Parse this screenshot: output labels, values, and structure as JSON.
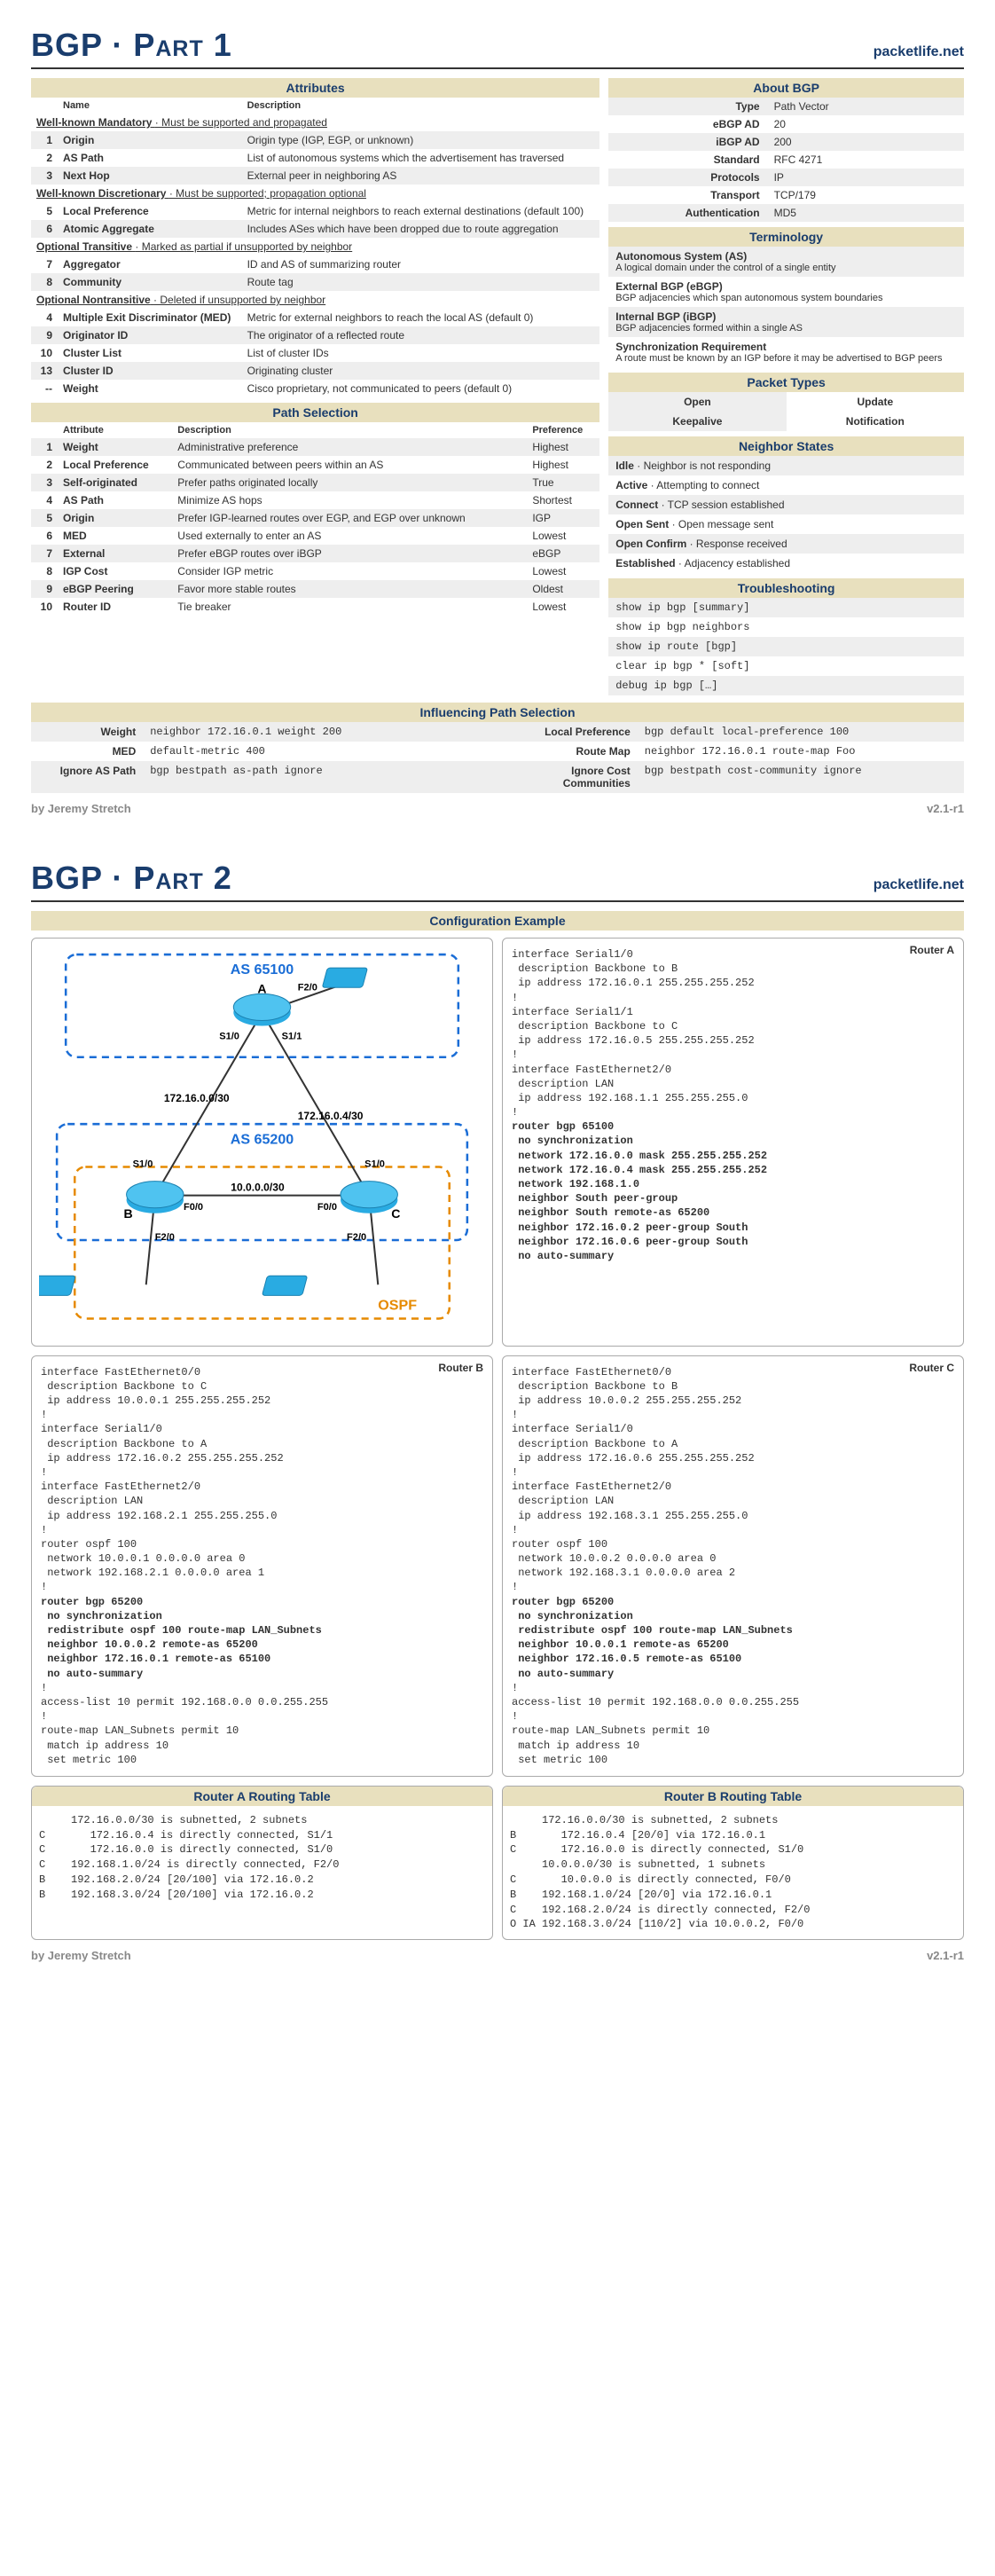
{
  "site": "packetlife.net",
  "footer_author": "by Jeremy Stretch",
  "footer_version": "v2.1-r1",
  "part1": {
    "title": "BGP · Part 1",
    "attributes": {
      "title": "Attributes",
      "cols": [
        "Name",
        "Description"
      ],
      "groups": [
        {
          "label": "Well-known Mandatory",
          "desc": "· Must be supported and propagated",
          "rows": [
            {
              "n": "1",
              "name": "Origin",
              "desc": "Origin type (IGP, EGP, or unknown)"
            },
            {
              "n": "2",
              "name": "AS Path",
              "desc": "List of autonomous systems which the advertisement has traversed"
            },
            {
              "n": "3",
              "name": "Next Hop",
              "desc": "External peer in neighboring AS"
            }
          ]
        },
        {
          "label": "Well-known Discretionary",
          "desc": "· Must be supported; propagation optional",
          "rows": [
            {
              "n": "5",
              "name": "Local Preference",
              "desc": "Metric for internal neighbors to reach external destinations (default 100)"
            },
            {
              "n": "6",
              "name": "Atomic Aggregate",
              "desc": "Includes ASes which have been dropped due to route aggregation"
            }
          ]
        },
        {
          "label": "Optional Transitive",
          "desc": "· Marked as partial if unsupported by neighbor",
          "rows": [
            {
              "n": "7",
              "name": "Aggregator",
              "desc": "ID and AS of summarizing router"
            },
            {
              "n": "8",
              "name": "Community",
              "desc": "Route tag"
            }
          ]
        },
        {
          "label": "Optional Nontransitive",
          "desc": "· Deleted if unsupported by neighbor",
          "rows": [
            {
              "n": "4",
              "name": "Multiple Exit Discriminator (MED)",
              "desc": "Metric for external neighbors to reach the local AS (default 0)"
            },
            {
              "n": "9",
              "name": "Originator ID",
              "desc": "The originator of a reflected route"
            },
            {
              "n": "10",
              "name": "Cluster List",
              "desc": "List of cluster IDs"
            },
            {
              "n": "13",
              "name": "Cluster ID",
              "desc": "Originating cluster"
            },
            {
              "n": "--",
              "name": "Weight",
              "desc": "Cisco proprietary, not communicated to peers (default 0)"
            }
          ]
        }
      ]
    },
    "path_selection": {
      "title": "Path Selection",
      "cols": [
        "Attribute",
        "Description",
        "Preference"
      ],
      "rows": [
        {
          "n": "1",
          "a": "Weight",
          "d": "Administrative preference",
          "p": "Highest"
        },
        {
          "n": "2",
          "a": "Local Preference",
          "d": "Communicated between peers within an AS",
          "p": "Highest"
        },
        {
          "n": "3",
          "a": "Self-originated",
          "d": "Prefer paths originated locally",
          "p": "True"
        },
        {
          "n": "4",
          "a": "AS Path",
          "d": "Minimize AS hops",
          "p": "Shortest"
        },
        {
          "n": "5",
          "a": "Origin",
          "d": "Prefer IGP-learned routes over EGP, and EGP over unknown",
          "p": "IGP"
        },
        {
          "n": "6",
          "a": "MED",
          "d": "Used externally to enter an AS",
          "p": "Lowest"
        },
        {
          "n": "7",
          "a": "External",
          "d": "Prefer eBGP routes over iBGP",
          "p": "eBGP"
        },
        {
          "n": "8",
          "a": "IGP Cost",
          "d": "Consider IGP metric",
          "p": "Lowest"
        },
        {
          "n": "9",
          "a": "eBGP Peering",
          "d": "Favor more stable routes",
          "p": "Oldest"
        },
        {
          "n": "10",
          "a": "Router ID",
          "d": "Tie breaker",
          "p": "Lowest"
        }
      ]
    },
    "about": {
      "title": "About BGP",
      "rows": [
        [
          "Type",
          "Path Vector"
        ],
        [
          "eBGP AD",
          "20"
        ],
        [
          "iBGP AD",
          "200"
        ],
        [
          "Standard",
          "RFC 4271"
        ],
        [
          "Protocols",
          "IP"
        ],
        [
          "Transport",
          "TCP/179"
        ],
        [
          "Authentication",
          "MD5"
        ]
      ]
    },
    "terminology": {
      "title": "Terminology",
      "items": [
        {
          "name": "Autonomous System (AS)",
          "desc": "A logical domain under the control of a single entity"
        },
        {
          "name": "External BGP (eBGP)",
          "desc": "BGP adjacencies which span autonomous system boundaries"
        },
        {
          "name": "Internal BGP (iBGP)",
          "desc": "BGP adjacencies formed within a single AS"
        },
        {
          "name": "Synchronization Requirement",
          "desc": "A route must be known by an IGP before it may be advertised to BGP peers"
        }
      ]
    },
    "packet_types": {
      "title": "Packet Types",
      "items": [
        "Open",
        "Update",
        "Keepalive",
        "Notification"
      ]
    },
    "neighbor_states": {
      "title": "Neighbor States",
      "rows": [
        [
          "Idle",
          "Neighbor is not responding"
        ],
        [
          "Active",
          "Attempting to connect"
        ],
        [
          "Connect",
          "TCP session established"
        ],
        [
          "Open Sent",
          "Open message sent"
        ],
        [
          "Open Confirm",
          "Response received"
        ],
        [
          "Established",
          "Adjacency established"
        ]
      ]
    },
    "troubleshooting": {
      "title": "Troubleshooting",
      "rows": [
        "show ip bgp [summary]",
        "show ip bgp neighbors",
        "show ip route [bgp]",
        "clear ip bgp * [soft]",
        "debug ip bgp […]"
      ]
    },
    "influencing": {
      "title": "Influencing Path Selection",
      "rows": [
        [
          "Weight",
          "neighbor 172.16.0.1 weight 200",
          "Local Preference",
          "bgp default local-preference 100"
        ],
        [
          "MED",
          "default-metric 400",
          "Route Map",
          "neighbor 172.16.0.1 route-map Foo"
        ],
        [
          "Ignore AS Path",
          "bgp bestpath as-path ignore",
          "Ignore Cost Communities",
          "bgp bestpath cost-community ignore"
        ]
      ]
    }
  },
  "part2": {
    "title": "BGP · Part 2",
    "config_title": "Configuration Example",
    "diagram": {
      "as1": "AS 65100",
      "as2": "AS 65200",
      "ospf": "OSPF",
      "labels": [
        "F2/0",
        "S1/0",
        "S1/1",
        "S1/0",
        "S1/0",
        "F0/0",
        "F0/0",
        "F2/0",
        "F2/0"
      ],
      "nets": [
        "172.16.0.0/30",
        "172.16.0.4/30",
        "10.0.0.0/30"
      ],
      "nodes": [
        "A",
        "B",
        "C"
      ]
    },
    "routerA": {
      "label": "Router A",
      "config": "interface Serial1/0\n description Backbone to B\n ip address 172.16.0.1 255.255.255.252\n!\ninterface Serial1/1\n description Backbone to C\n ip address 172.16.0.5 255.255.255.252\n!\ninterface FastEthernet2/0\n description LAN\n ip address 192.168.1.1 255.255.255.0\n!\n<b>router bgp 65100\n no synchronization\n network 172.16.0.0 mask 255.255.255.252\n network 172.16.0.4 mask 255.255.255.252\n network 192.168.1.0\n neighbor South peer-group\n neighbor South remote-as 65200\n neighbor 172.16.0.2 peer-group South\n neighbor 172.16.0.6 peer-group South\n no auto-summary</b>"
    },
    "routerB": {
      "label": "Router B",
      "config": "interface FastEthernet0/0\n description Backbone to C\n ip address 10.0.0.1 255.255.255.252\n!\ninterface Serial1/0\n description Backbone to A\n ip address 172.16.0.2 255.255.255.252\n!\ninterface FastEthernet2/0\n description LAN\n ip address 192.168.2.1 255.255.255.0\n!\nrouter ospf 100\n network 10.0.0.1 0.0.0.0 area 0\n network 192.168.2.1 0.0.0.0 area 1\n!\n<b>router bgp 65200\n no synchronization\n redistribute ospf 100 route-map LAN_Subnets\n neighbor 10.0.0.2 remote-as 65200\n neighbor 172.16.0.1 remote-as 65100\n no auto-summary</b>\n!\naccess-list 10 permit 192.168.0.0 0.0.255.255\n!\nroute-map LAN_Subnets permit 10\n match ip address 10\n set metric 100"
    },
    "routerC": {
      "label": "Router C",
      "config": "interface FastEthernet0/0\n description Backbone to B\n ip address 10.0.0.2 255.255.255.252\n!\ninterface Serial1/0\n description Backbone to A\n ip address 172.16.0.6 255.255.255.252\n!\ninterface FastEthernet2/0\n description LAN\n ip address 192.168.3.1 255.255.255.0\n!\nrouter ospf 100\n network 10.0.0.2 0.0.0.0 area 0\n network 192.168.3.1 0.0.0.0 area 2\n!\n<b>router bgp 65200\n no synchronization\n redistribute ospf 100 route-map LAN_Subnets\n neighbor 10.0.0.1 remote-as 65200\n neighbor 172.16.0.5 remote-as 65100\n no auto-summary</b>\n!\naccess-list 10 permit 192.168.0.0 0.0.255.255\n!\nroute-map LAN_Subnets permit 10\n match ip address 10\n set metric 100"
    },
    "rtableA": {
      "title": "Router A Routing Table",
      "body": "     172.16.0.0/30 is subnetted, 2 subnets\nC       172.16.0.4 is directly connected, S1/1\nC       172.16.0.0 is directly connected, S1/0\nC    192.168.1.0/24 is directly connected, F2/0\nB    192.168.2.0/24 [20/100] via 172.16.0.2\nB    192.168.3.0/24 [20/100] via 172.16.0.2"
    },
    "rtableB": {
      "title": "Router B Routing Table",
      "body": "     172.16.0.0/30 is subnetted, 2 subnets\nB       172.16.0.4 [20/0] via 172.16.0.1\nC       172.16.0.0 is directly connected, S1/0\n     10.0.0.0/30 is subnetted, 1 subnets\nC       10.0.0.0 is directly connected, F0/0\nB    192.168.1.0/24 [20/0] via 172.16.0.1\nC    192.168.2.0/24 is directly connected, F2/0\nO IA 192.168.3.0/24 [110/2] via 10.0.0.2, F0/0"
    }
  }
}
